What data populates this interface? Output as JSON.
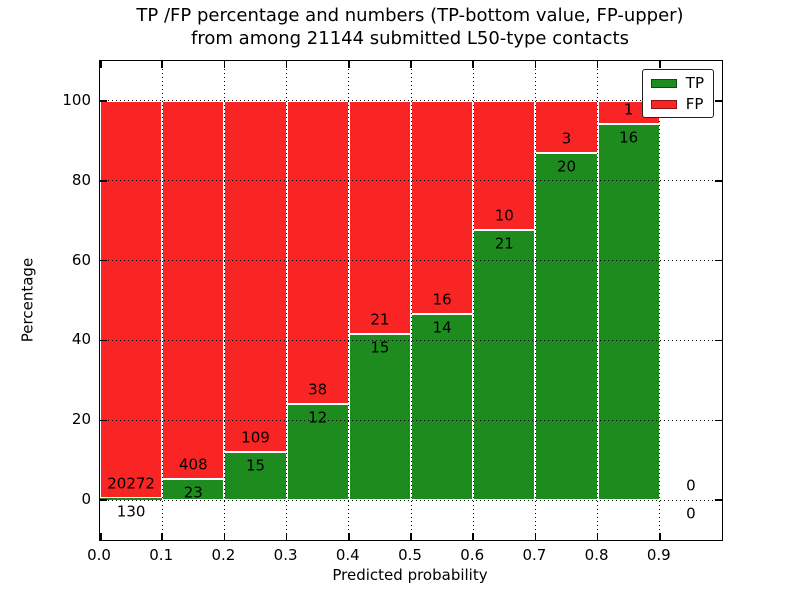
{
  "chart_data": {
    "type": "bar",
    "stacked": true,
    "normalized_to_percent": true,
    "title_lines": [
      "TP /FP percentage and numbers (TP-bottom value, FP-upper)",
      "from among 21144 submitted L50-type contacts"
    ],
    "total_submitted_contacts": 21144,
    "xlabel": "Predicted probability",
    "ylabel": "Percentage",
    "xlim": [
      0.0,
      1.0
    ],
    "ylim": [
      -10,
      110
    ],
    "grid": true,
    "grid_style": "dotted",
    "legend_position": "upper right",
    "x_tick_values": [
      0.0,
      0.1,
      0.2,
      0.3,
      0.4,
      0.5,
      0.6,
      0.7,
      0.8,
      0.9
    ],
    "x_tick_labels": [
      "0.0",
      "0.1",
      "0.2",
      "0.3",
      "0.4",
      "0.5",
      "0.6",
      "0.7",
      "0.8",
      "0.9"
    ],
    "y_tick_values": [
      0,
      20,
      40,
      60,
      80,
      100
    ],
    "y_tick_labels": [
      "0",
      "20",
      "40",
      "60",
      "80",
      "100"
    ],
    "bins": [
      {
        "range": [
          0.0,
          0.1
        ],
        "tp_count": 130,
        "fp_count": 20272
      },
      {
        "range": [
          0.1,
          0.2
        ],
        "tp_count": 23,
        "fp_count": 408
      },
      {
        "range": [
          0.2,
          0.3
        ],
        "tp_count": 15,
        "fp_count": 109
      },
      {
        "range": [
          0.3,
          0.4
        ],
        "tp_count": 12,
        "fp_count": 38
      },
      {
        "range": [
          0.4,
          0.5
        ],
        "tp_count": 15,
        "fp_count": 21
      },
      {
        "range": [
          0.5,
          0.6
        ],
        "tp_count": 14,
        "fp_count": 16
      },
      {
        "range": [
          0.6,
          0.7
        ],
        "tp_count": 21,
        "fp_count": 10
      },
      {
        "range": [
          0.7,
          0.8
        ],
        "tp_count": 20,
        "fp_count": 3
      },
      {
        "range": [
          0.8,
          0.9
        ],
        "tp_count": 16,
        "fp_count": 1
      },
      {
        "range": [
          0.9,
          1.0
        ],
        "tp_count": 0,
        "fp_count": 0
      }
    ],
    "legend": [
      {
        "label": "TP",
        "color": "#1e8b1e"
      },
      {
        "label": "FP",
        "color": "#f92525"
      }
    ],
    "colors": {
      "tp": "#1e8b1e",
      "fp": "#f92525",
      "tp_edge": "#0d5c0d",
      "fp_edge": "#b01212",
      "grid": "#000000",
      "background": "#ffffff"
    }
  }
}
